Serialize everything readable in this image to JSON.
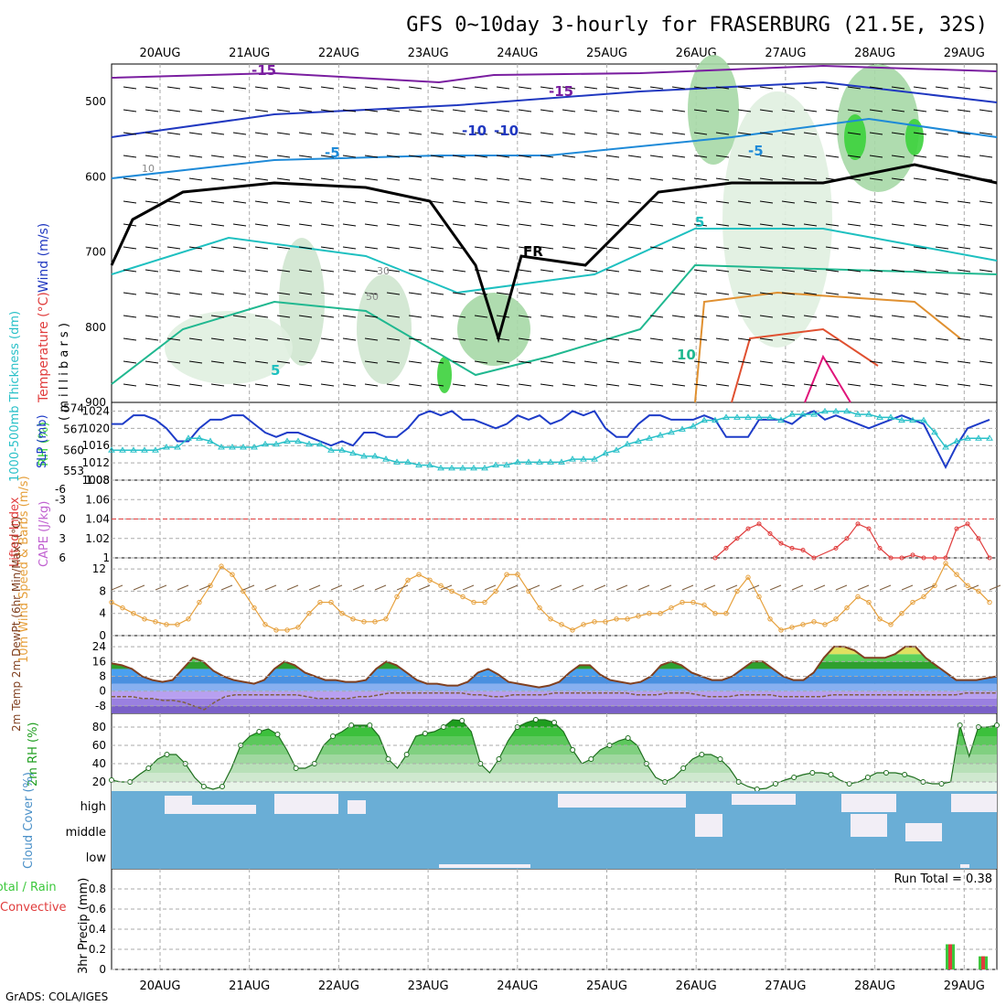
{
  "title": "GFS 0~10day 3-hourly for FRASERBURG (21.5E, 32S)",
  "footer": "GrADS: COLA/IGES",
  "date_labels": [
    "20AUG",
    "21AUG",
    "22AUG",
    "23AUG",
    "24AUG",
    "25AUG",
    "26AUG",
    "27AUG",
    "28AUG",
    "29AUG"
  ],
  "colors": {
    "rh_green": "#3cd23c",
    "slp": "#1e3cc8",
    "thickness": "#28c0c8",
    "cape": "#e03c3c",
    "wind": "#e6a03c",
    "rain": "#3cc83c",
    "convective": "#e03c3c",
    "cloud": "#6aaed6",
    "cloud_clear": "#f2eef6"
  },
  "chart_data": [
    {
      "panel": "upper-air",
      "type": "contour",
      "ylabel_parts": [
        "RH (%)",
        "Temperature (°C)",
        "Wind (m/s)"
      ],
      "ylabel_unit": "( m i l l i b a r s )",
      "yticks": [
        500,
        600,
        700,
        800,
        900
      ],
      "ylim": [
        450,
        900
      ],
      "temperature_labels": [
        "-15",
        "-15",
        "-10",
        "-10",
        "-5",
        "-5",
        "5",
        "5",
        "10",
        "FR"
      ],
      "rh_labels": [
        "10",
        "30",
        "50"
      ]
    },
    {
      "panel": "slp-thickness",
      "type": "line",
      "ylabel_left": "1000-500mb Thickness (dm)",
      "ylabel_right": "SLP (mb)",
      "yticks_left": [
        553,
        560,
        567,
        574
      ],
      "yticks_right": [
        1008,
        1012,
        1016,
        1020,
        1024
      ],
      "series": [
        {
          "name": "SLP",
          "values": [
            1021,
            1021,
            1023,
            1023,
            1022,
            1020,
            1017,
            1017,
            1020,
            1022,
            1022,
            1023,
            1023,
            1021,
            1019,
            1018,
            1019,
            1019,
            1018,
            1017,
            1016,
            1017,
            1016,
            1019,
            1019,
            1018,
            1018,
            1020,
            1023,
            1024,
            1023,
            1024,
            1022,
            1022,
            1021,
            1020,
            1021,
            1023,
            1022,
            1023,
            1021,
            1022,
            1024,
            1023,
            1024,
            1020,
            1018,
            1018,
            1021,
            1023,
            1023,
            1022,
            1022,
            1022,
            1023,
            1022,
            1018,
            1018,
            1018,
            1022,
            1022,
            1022,
            1021,
            1023,
            1024,
            1022,
            1023,
            1022,
            1021,
            1020,
            1021,
            1022,
            1023,
            1022,
            1021,
            1016,
            1011,
            1016,
            1020,
            1021,
            1022
          ]
        },
        {
          "name": "Thickness",
          "values": [
            560,
            560,
            560,
            560,
            560,
            561,
            561,
            564,
            564,
            563,
            561,
            561,
            561,
            561,
            562,
            562,
            563,
            563,
            562,
            562,
            560,
            560,
            559,
            558,
            558,
            557,
            556,
            556,
            555,
            555,
            554,
            554,
            554,
            554,
            554,
            555,
            555,
            556,
            556,
            556,
            556,
            556,
            557,
            557,
            557,
            559,
            560,
            562,
            563,
            564,
            565,
            566,
            567,
            568,
            570,
            570,
            571,
            571,
            571,
            571,
            571,
            570,
            572,
            572,
            572,
            573,
            573,
            573,
            572,
            572,
            571,
            571,
            570,
            570,
            570,
            566,
            561,
            563,
            564,
            564,
            564
          ]
        }
      ]
    },
    {
      "panel": "cape-li",
      "type": "line",
      "ylabel_left": "Lifted Index",
      "ylabel_right": "CAPE (J/kg)",
      "yticks_left": [
        -6,
        -3,
        0,
        3,
        6
      ],
      "yticks_right": [
        1,
        1.02,
        1.04,
        1.06,
        1.08
      ],
      "series": [
        {
          "name": "CAPE",
          "values": [
            null,
            null,
            null,
            null,
            null,
            null,
            null,
            null,
            null,
            null,
            null,
            null,
            null,
            null,
            null,
            null,
            null,
            null,
            null,
            null,
            null,
            null,
            null,
            null,
            null,
            null,
            null,
            null,
            null,
            null,
            null,
            null,
            null,
            null,
            null,
            null,
            null,
            null,
            null,
            null,
            null,
            null,
            null,
            null,
            null,
            null,
            null,
            null,
            null,
            null,
            null,
            null,
            null,
            null,
            null,
            1,
            1.01,
            1.02,
            1.03,
            1.035,
            1.025,
            1.015,
            1.01,
            1.008,
            1,
            null,
            1.01,
            1.02,
            1.035,
            1.03,
            1.01,
            1,
            1,
            1.003,
            1,
            1,
            1,
            1.03,
            1.035,
            1.02,
            1
          ]
        }
      ]
    },
    {
      "panel": "wind-10m",
      "type": "line",
      "ylabel": "10m Wind Speed & Barbs (m/s)",
      "yticks": [
        0,
        4,
        8,
        12
      ],
      "ylim": [
        0,
        14
      ],
      "series": [
        {
          "name": "Wind",
          "values": [
            6,
            5,
            4,
            3,
            2.5,
            2,
            2,
            3,
            6,
            9,
            12.5,
            11,
            8,
            5,
            2,
            1,
            1,
            1.5,
            4,
            6,
            6,
            4,
            3,
            2.5,
            2.5,
            3,
            7,
            10,
            11,
            10,
            9,
            8,
            7,
            6,
            6,
            8,
            11,
            11,
            8,
            5,
            3,
            2,
            1,
            2,
            2.5,
            2.5,
            3,
            3,
            3.5,
            4,
            4,
            5,
            6,
            6,
            5.5,
            4,
            4,
            8,
            10.5,
            7,
            3,
            1,
            1.5,
            2,
            2.5,
            2,
            3,
            5,
            7,
            6,
            3,
            2,
            4,
            6,
            7,
            9,
            13,
            11,
            9,
            8,
            6
          ]
        }
      ]
    },
    {
      "panel": "temperature-2m",
      "type": "area",
      "ylabel": "2m Temp 2m DewPt (6hr Min/Max) (°C)",
      "yticks": [
        -8,
        0,
        8,
        16,
        24
      ],
      "ylim": [
        -12,
        30
      ],
      "series": [
        {
          "name": "Temp",
          "values": [
            15,
            14,
            12,
            8,
            6,
            5,
            6,
            12,
            18,
            16,
            11,
            8,
            6,
            5,
            4,
            6,
            12,
            16,
            14,
            10,
            8,
            6,
            6,
            5,
            5,
            6,
            12,
            16,
            14,
            10,
            6,
            4,
            4,
            3,
            3,
            5,
            10,
            12,
            9,
            5,
            4,
            3,
            2,
            3,
            5,
            10,
            14,
            14,
            9,
            6,
            5,
            4,
            5,
            8,
            14,
            16,
            14,
            10,
            8,
            6,
            6,
            8,
            12,
            16,
            16,
            12,
            8,
            6,
            6,
            10,
            18,
            24,
            24,
            22,
            18,
            18,
            18,
            20,
            24,
            24,
            18,
            14,
            10,
            6,
            6,
            6,
            7,
            8
          ]
        },
        {
          "name": "DewPt",
          "values": [
            -3,
            -3,
            -3,
            -4,
            -4,
            -5,
            -5,
            -6,
            -8,
            -10,
            -6,
            -3,
            -2,
            -2,
            -2,
            -2,
            -2,
            -2,
            -2,
            -3,
            -4,
            -4,
            -4,
            -4,
            -3,
            -3,
            -2,
            -1,
            -1,
            -1,
            -1,
            -1,
            -1,
            -1,
            -1,
            -2,
            -2,
            -3,
            -3,
            -2,
            -2,
            -2,
            -2,
            -1,
            -1,
            -1,
            -1,
            -1,
            -1,
            -1,
            -1,
            -2,
            -2,
            -2,
            -1,
            -1,
            -1,
            -2,
            -3,
            -3,
            -3,
            -2,
            -2,
            -2,
            -2,
            -3,
            -3,
            -3,
            -3,
            -3,
            -2,
            -2,
            -2,
            -2,
            -2,
            -2,
            -2,
            -2,
            -2,
            -2,
            -2,
            -2,
            -2,
            -1,
            -1,
            -1,
            -1
          ]
        }
      ]
    },
    {
      "panel": "rh-2m",
      "type": "area",
      "ylabel": "2m RH (%)",
      "yticks": [
        20,
        40,
        60,
        80
      ],
      "ylim": [
        10,
        95
      ],
      "series": [
        {
          "name": "RH",
          "values": [
            22,
            20,
            20,
            28,
            35,
            45,
            50,
            50,
            40,
            25,
            15,
            12,
            15,
            35,
            60,
            70,
            75,
            78,
            72,
            55,
            35,
            35,
            40,
            60,
            70,
            75,
            82,
            82,
            82,
            70,
            45,
            35,
            50,
            70,
            73,
            75,
            80,
            88,
            87,
            75,
            40,
            30,
            45,
            65,
            80,
            85,
            88,
            88,
            85,
            75,
            55,
            40,
            45,
            55,
            60,
            65,
            68,
            60,
            40,
            25,
            20,
            25,
            35,
            45,
            50,
            50,
            45,
            35,
            20,
            15,
            12,
            13,
            18,
            22,
            25,
            28,
            30,
            30,
            28,
            22,
            18,
            20,
            25,
            30,
            30,
            30,
            28,
            25,
            20,
            18,
            18,
            20,
            82,
            48,
            80,
            80,
            82
          ]
        }
      ]
    },
    {
      "panel": "cloud-cover",
      "type": "heatmap",
      "ylabel": "Cloud Cover (%)",
      "ytick_labels": [
        "high",
        "middle",
        "low"
      ]
    },
    {
      "panel": "precipitation",
      "type": "bar",
      "ylabel_parts": [
        "Total / Rain",
        "Convective"
      ],
      "ylabel": "3hr Precip (mm)",
      "yticks": [
        0,
        0.2,
        0.4,
        0.6,
        0.8
      ],
      "ylim": [
        0,
        1
      ],
      "run_total": "Run Total = 0.38",
      "series": [
        {
          "name": "Total",
          "values": [
            0.25,
            0.13
          ]
        },
        {
          "name": "Convective",
          "values": [
            0.25,
            0.13
          ]
        }
      ],
      "x_index": [
        76,
        79
      ]
    }
  ]
}
